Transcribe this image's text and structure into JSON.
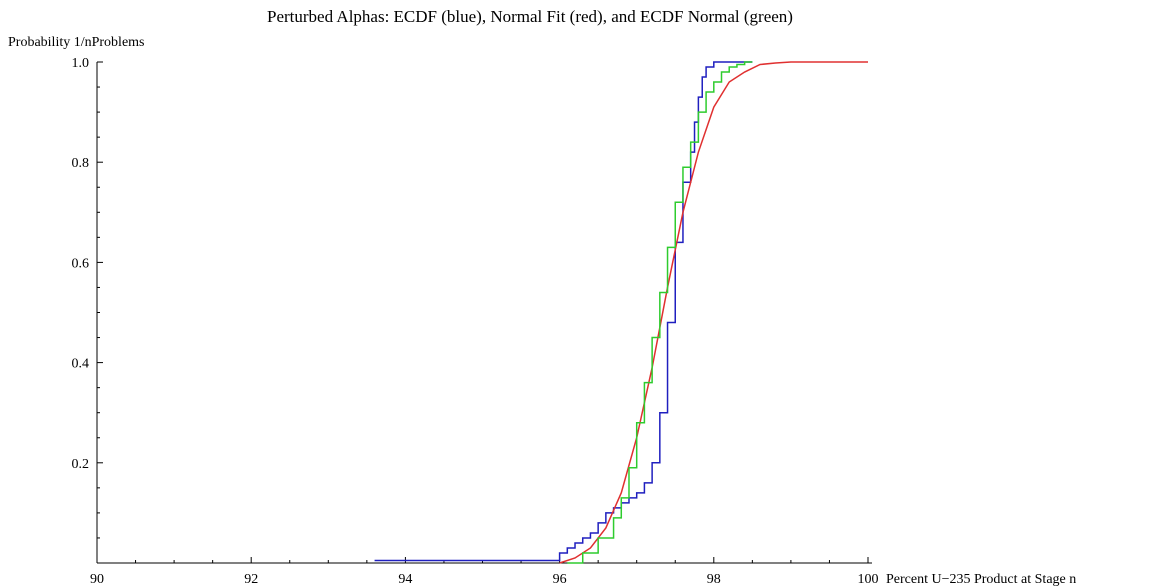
{
  "chart_data": {
    "type": "line",
    "title": "Perturbed Alphas:  ECDF (blue), Normal Fit (red), and ECDF Normal (green)",
    "xlabel": "Percent U−235 Product at Stage n",
    "ylabel": "Probability 1/nProblems",
    "xlim": [
      90,
      100
    ],
    "ylim": [
      0,
      1.0
    ],
    "x_ticks": [
      90,
      92,
      94,
      96,
      98,
      100
    ],
    "x_tick_labels": [
      "90",
      "92",
      "94",
      "96",
      "98",
      "100"
    ],
    "y_ticks": [
      0.2,
      0.4,
      0.6,
      0.8,
      1.0
    ],
    "y_tick_labels": [
      "0.2",
      "0.4",
      "0.6",
      "0.8",
      "1.0"
    ],
    "grid": false,
    "legend": "none",
    "series": [
      {
        "color": "#1f1fbf",
        "step": true,
        "x": [
          93.6,
          95.9,
          96.0,
          96.1,
          96.2,
          96.3,
          96.4,
          96.5,
          96.6,
          96.7,
          96.8,
          96.9,
          97.0,
          97.1,
          97.2,
          97.3,
          97.4,
          97.5,
          97.6,
          97.7,
          97.75,
          97.8,
          97.85,
          97.9,
          98.0,
          98.5
        ],
        "y": [
          0.005,
          0.005,
          0.02,
          0.03,
          0.04,
          0.05,
          0.06,
          0.08,
          0.1,
          0.11,
          0.12,
          0.13,
          0.14,
          0.16,
          0.2,
          0.3,
          0.48,
          0.64,
          0.76,
          0.82,
          0.88,
          0.93,
          0.97,
          0.99,
          1.0,
          1.0
        ]
      },
      {
        "color": "#e03030",
        "step": false,
        "x": [
          96.0,
          96.2,
          96.4,
          96.6,
          96.8,
          97.0,
          97.2,
          97.4,
          97.6,
          97.8,
          98.0,
          98.2,
          98.4,
          98.6,
          98.8,
          99.0,
          99.5,
          100.0
        ],
        "y": [
          0.0,
          0.01,
          0.03,
          0.07,
          0.14,
          0.25,
          0.39,
          0.55,
          0.7,
          0.82,
          0.91,
          0.96,
          0.98,
          0.995,
          0.998,
          1.0,
          1.0,
          1.0
        ]
      },
      {
        "color": "#2ecc2e",
        "step": true,
        "x": [
          96.1,
          96.3,
          96.5,
          96.7,
          96.8,
          96.9,
          97.0,
          97.1,
          97.2,
          97.3,
          97.4,
          97.5,
          97.6,
          97.7,
          97.8,
          97.9,
          98.0,
          98.1,
          98.2,
          98.3,
          98.4,
          98.5
        ],
        "y": [
          0.0,
          0.02,
          0.05,
          0.09,
          0.13,
          0.19,
          0.28,
          0.36,
          0.45,
          0.54,
          0.63,
          0.72,
          0.79,
          0.84,
          0.9,
          0.94,
          0.96,
          0.98,
          0.99,
          0.995,
          1.0,
          1.0
        ]
      }
    ]
  }
}
